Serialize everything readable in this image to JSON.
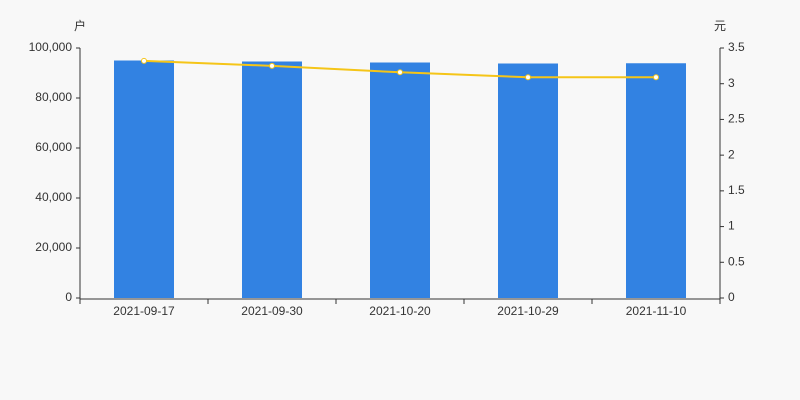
{
  "chart_data": {
    "type": "bar",
    "y_label": "户",
    "y2_label": "元",
    "categories": [
      "2021-09-17",
      "2021-09-30",
      "2021-10-20",
      "2021-10-29",
      "2021-11-10"
    ],
    "series": [
      {
        "type": "bar",
        "color": "#3282e2",
        "values": [
          95000,
          94600,
          94200,
          93800,
          93900
        ]
      },
      {
        "type": "line",
        "axis": "y2",
        "color": "#f5c518",
        "values": [
          3.32,
          3.25,
          3.16,
          3.09,
          3.09
        ]
      }
    ],
    "ylim": [
      0,
      100000
    ],
    "yticks": [
      0,
      {
        "value": 20000,
        "label": "20,000"
      },
      {
        "value": 40000,
        "label": "40,000"
      },
      {
        "value": 60000,
        "label": "60,000"
      },
      {
        "value": 80000,
        "label": "80,000"
      },
      {
        "value": 100000,
        "label": "100,000"
      }
    ],
    "y2lim": [
      0,
      3.5
    ],
    "y2ticks": [
      0,
      0.5,
      1,
      1.5,
      2,
      2.5,
      3,
      3.5
    ],
    "grid": false
  }
}
